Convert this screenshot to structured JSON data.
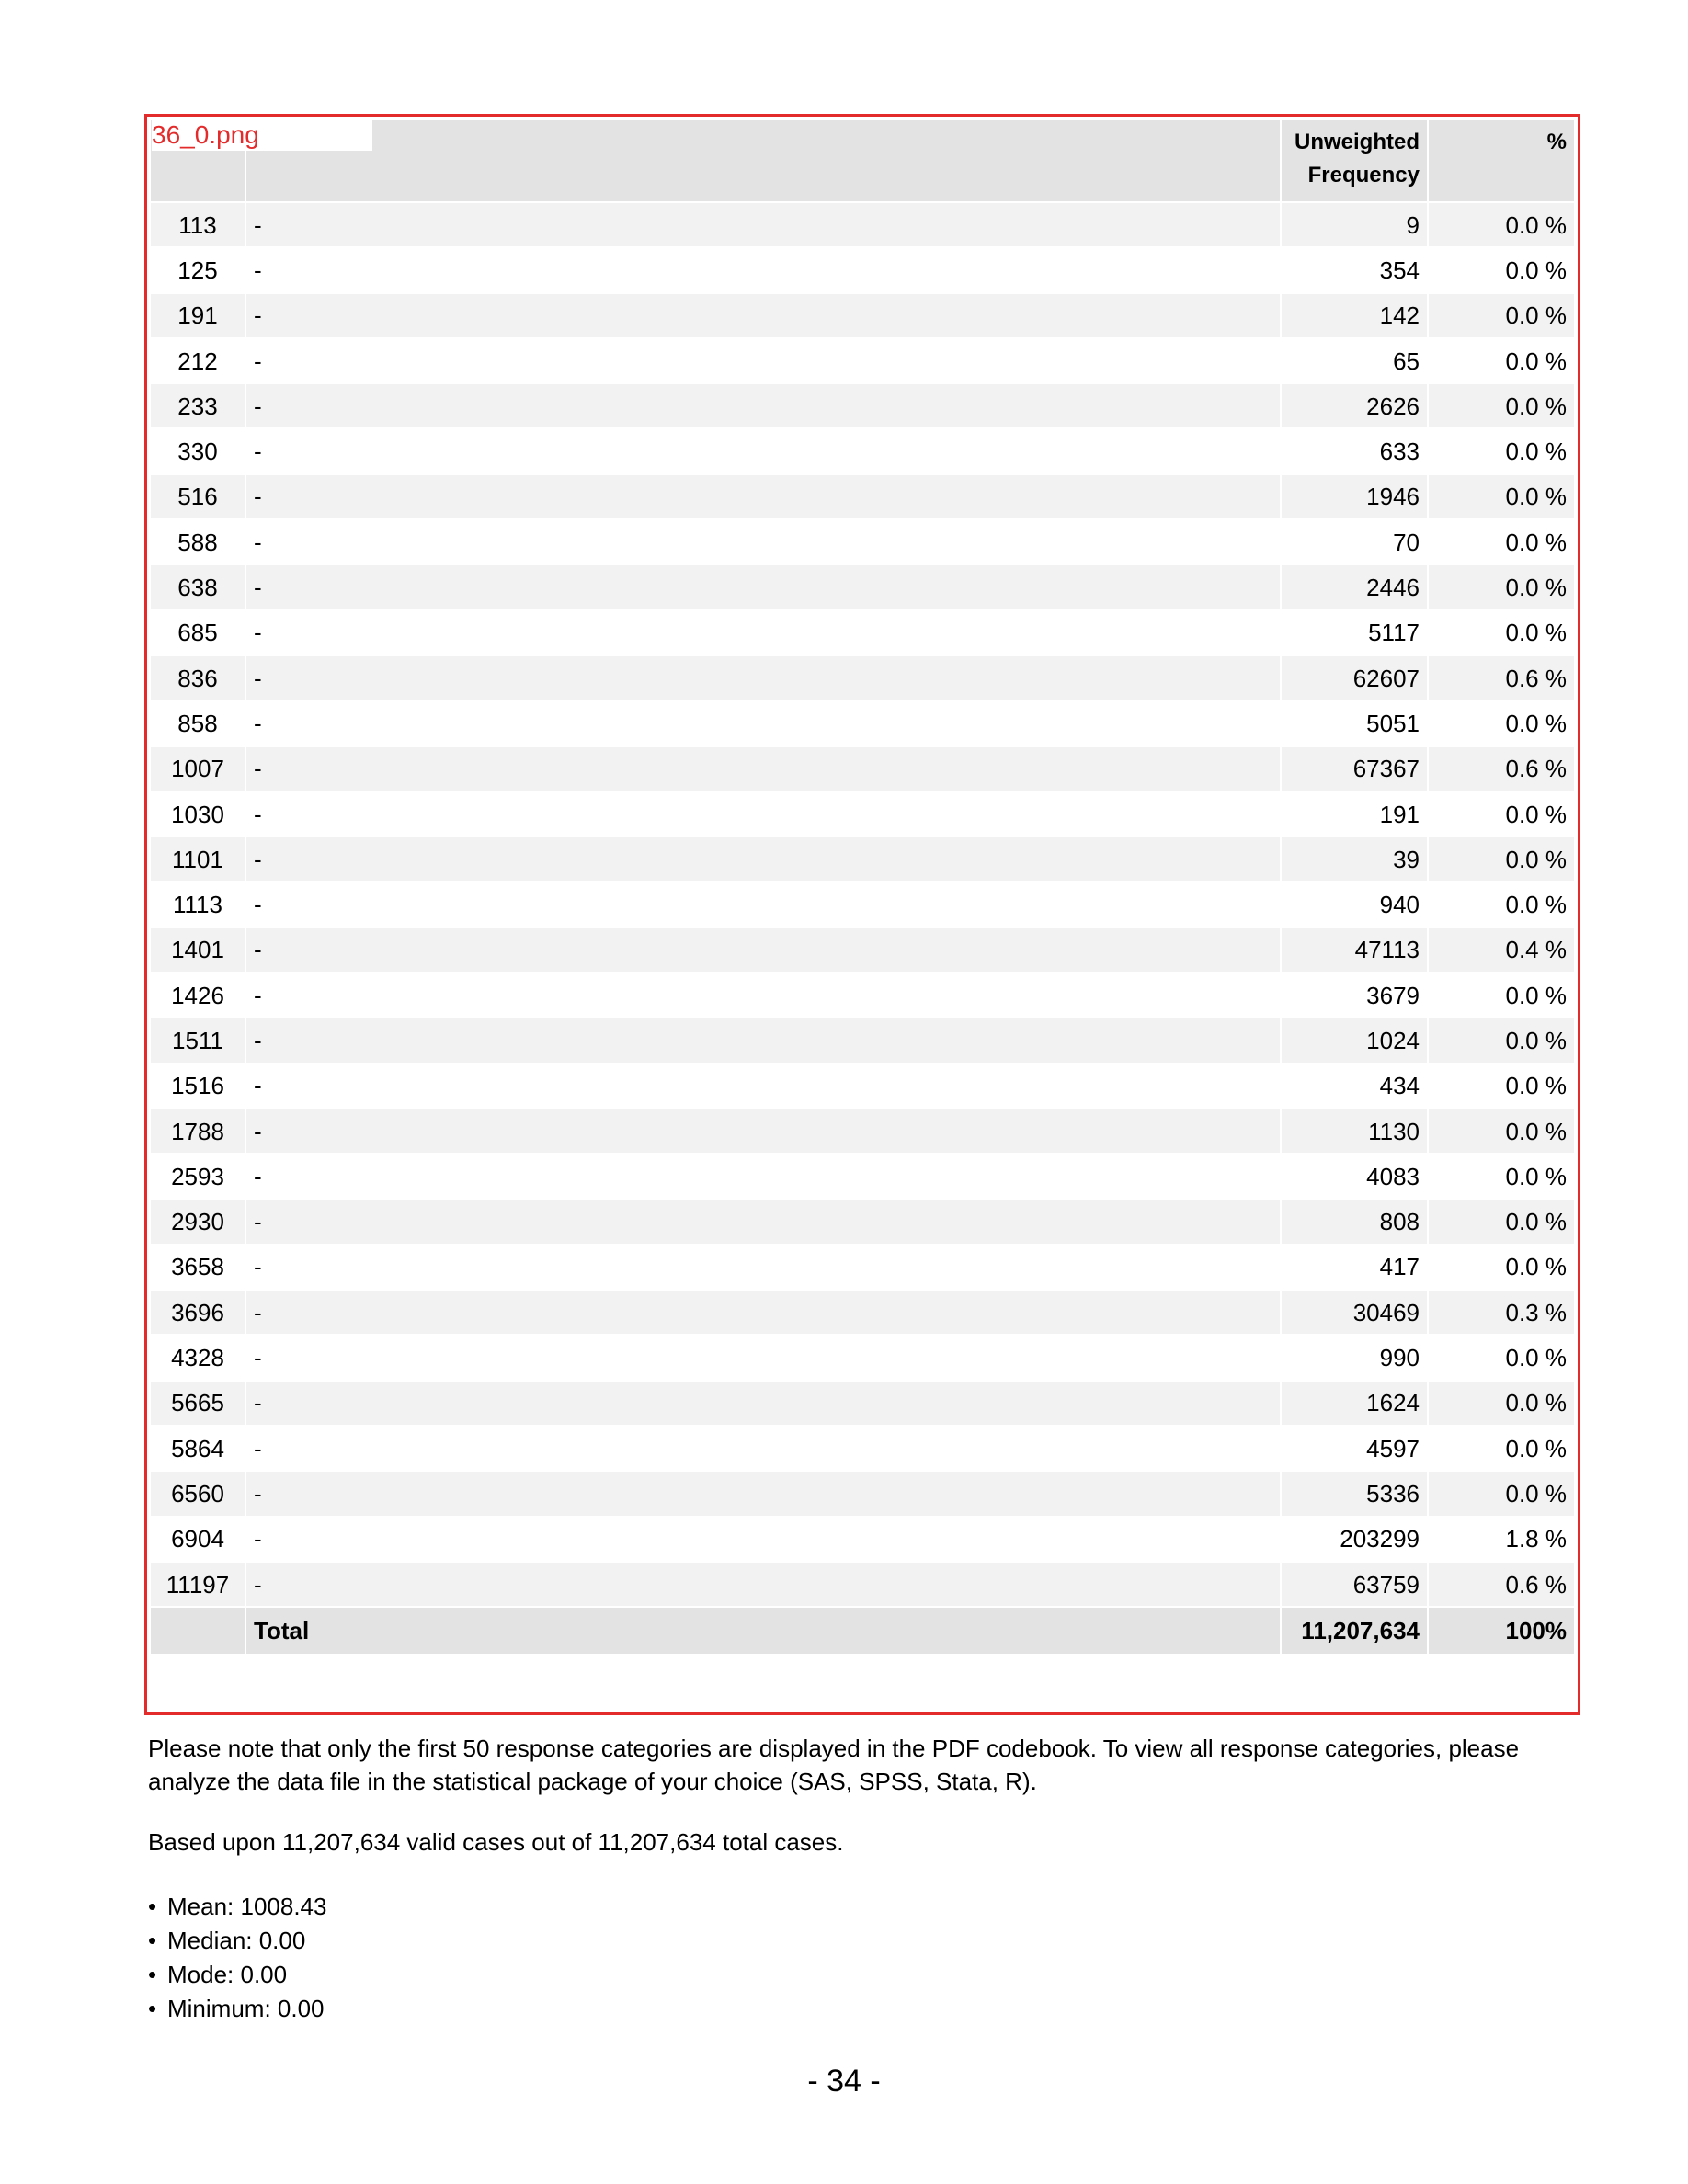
{
  "file_label": "36_0.png",
  "table": {
    "headers": {
      "code": "",
      "label": "",
      "frequency_line1": "Unweighted",
      "frequency_line2": "Frequency",
      "percent": "%"
    },
    "rows": [
      {
        "code": "113",
        "label": "-",
        "frequency": "9",
        "percent": "0.0 %"
      },
      {
        "code": "125",
        "label": "-",
        "frequency": "354",
        "percent": "0.0 %"
      },
      {
        "code": "191",
        "label": "-",
        "frequency": "142",
        "percent": "0.0 %"
      },
      {
        "code": "212",
        "label": "-",
        "frequency": "65",
        "percent": "0.0 %"
      },
      {
        "code": "233",
        "label": "-",
        "frequency": "2626",
        "percent": "0.0 %"
      },
      {
        "code": "330",
        "label": "-",
        "frequency": "633",
        "percent": "0.0 %"
      },
      {
        "code": "516",
        "label": "-",
        "frequency": "1946",
        "percent": "0.0 %"
      },
      {
        "code": "588",
        "label": "-",
        "frequency": "70",
        "percent": "0.0 %"
      },
      {
        "code": "638",
        "label": "-",
        "frequency": "2446",
        "percent": "0.0 %"
      },
      {
        "code": "685",
        "label": "-",
        "frequency": "5117",
        "percent": "0.0 %"
      },
      {
        "code": "836",
        "label": "-",
        "frequency": "62607",
        "percent": "0.6 %"
      },
      {
        "code": "858",
        "label": "-",
        "frequency": "5051",
        "percent": "0.0 %"
      },
      {
        "code": "1007",
        "label": "-",
        "frequency": "67367",
        "percent": "0.6 %"
      },
      {
        "code": "1030",
        "label": "-",
        "frequency": "191",
        "percent": "0.0 %"
      },
      {
        "code": "1101",
        "label": "-",
        "frequency": "39",
        "percent": "0.0 %"
      },
      {
        "code": "1113",
        "label": "-",
        "frequency": "940",
        "percent": "0.0 %"
      },
      {
        "code": "1401",
        "label": "-",
        "frequency": "47113",
        "percent": "0.4 %"
      },
      {
        "code": "1426",
        "label": "-",
        "frequency": "3679",
        "percent": "0.0 %"
      },
      {
        "code": "1511",
        "label": "-",
        "frequency": "1024",
        "percent": "0.0 %"
      },
      {
        "code": "1516",
        "label": "-",
        "frequency": "434",
        "percent": "0.0 %"
      },
      {
        "code": "1788",
        "label": "-",
        "frequency": "1130",
        "percent": "0.0 %"
      },
      {
        "code": "2593",
        "label": "-",
        "frequency": "4083",
        "percent": "0.0 %"
      },
      {
        "code": "2930",
        "label": "-",
        "frequency": "808",
        "percent": "0.0 %"
      },
      {
        "code": "3658",
        "label": "-",
        "frequency": "417",
        "percent": "0.0 %"
      },
      {
        "code": "3696",
        "label": "-",
        "frequency": "30469",
        "percent": "0.3 %"
      },
      {
        "code": "4328",
        "label": "-",
        "frequency": "990",
        "percent": "0.0 %"
      },
      {
        "code": "5665",
        "label": "-",
        "frequency": "1624",
        "percent": "0.0 %"
      },
      {
        "code": "5864",
        "label": "-",
        "frequency": "4597",
        "percent": "0.0 %"
      },
      {
        "code": "6560",
        "label": "-",
        "frequency": "5336",
        "percent": "0.0 %"
      },
      {
        "code": "6904",
        "label": "-",
        "frequency": "203299",
        "percent": "1.8 %"
      },
      {
        "code": "11197",
        "label": "-",
        "frequency": "63759",
        "percent": "0.6 %"
      }
    ],
    "total": {
      "label": "Total",
      "frequency": "11,207,634",
      "percent": "100%"
    }
  },
  "note": "Please note that only the first 50 response categories are displayed in the PDF codebook. To view all response categories, please analyze the data file in the statistical package of your choice (SAS, SPSS, Stata, R).",
  "based_upon": "Based upon 11,207,634 valid cases out of 11,207,634 total cases.",
  "stats": [
    "Mean: 1008.43",
    "Median: 0.00",
    "Mode: 0.00",
    "Minimum: 0.00"
  ],
  "page_number": "- 34 -"
}
